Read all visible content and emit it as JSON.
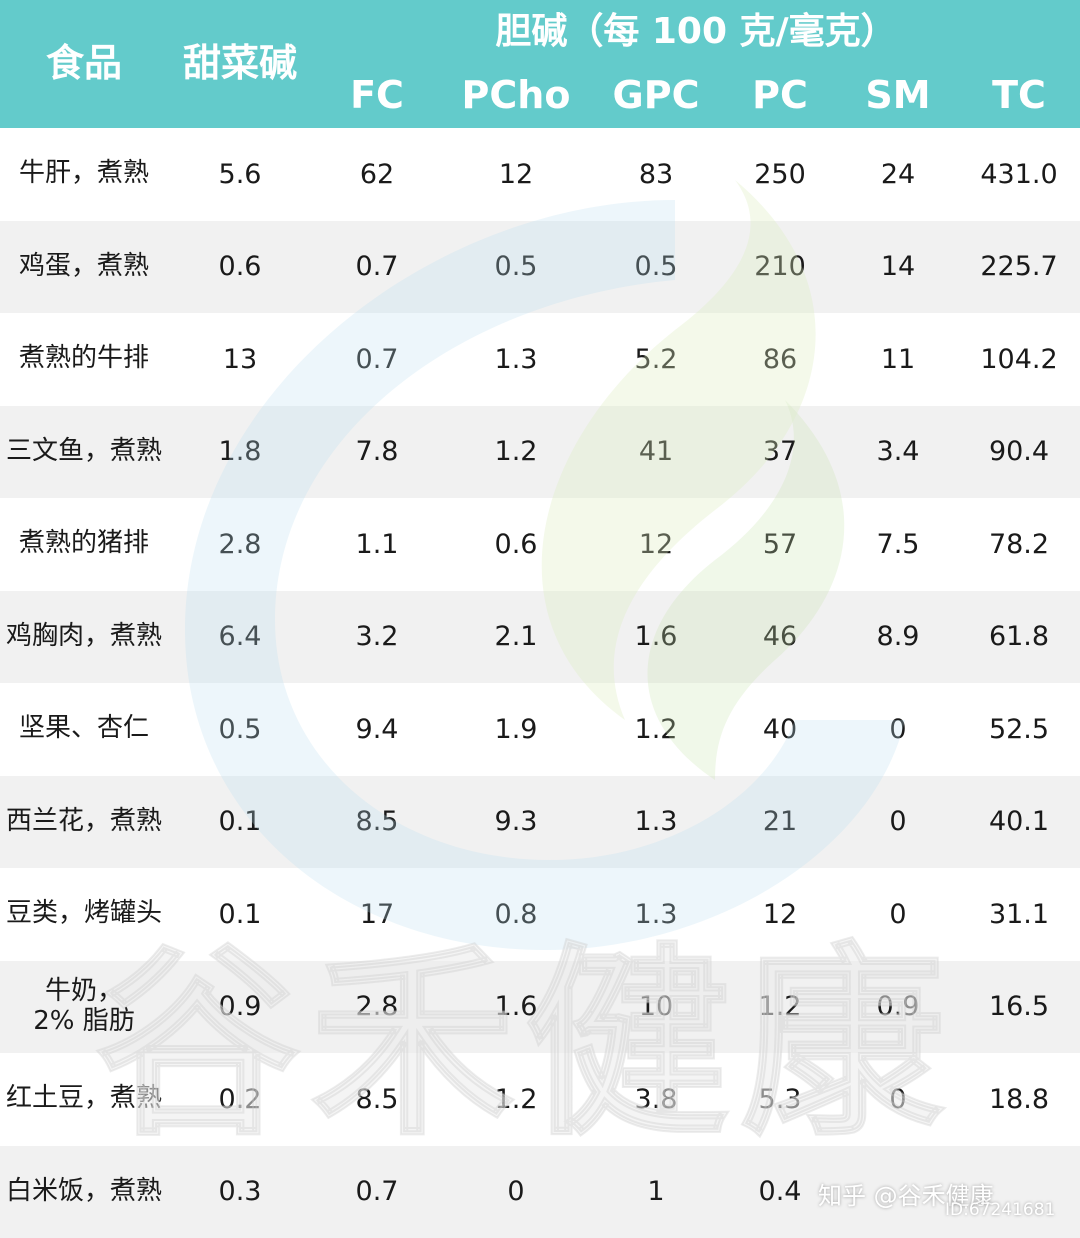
{
  "header": {
    "food": "食品",
    "betaine": "甜菜碱",
    "choline_group": "胆碱（每 100 克/毫克）",
    "sub": [
      "FC",
      "PCho",
      "GPC",
      "PC",
      "SM",
      "TC"
    ]
  },
  "rows": [
    {
      "food": "牛肝，煮熟",
      "betaine": "5.6",
      "fc": "62",
      "pcho": "12",
      "gpc": "83",
      "pc": "250",
      "sm": "24",
      "tc": "431.0"
    },
    {
      "food": "鸡蛋，煮熟",
      "betaine": "0.6",
      "fc": "0.7",
      "pcho": "0.5",
      "gpc": "0.5",
      "pc": "210",
      "sm": "14",
      "tc": "225.7"
    },
    {
      "food": "煮熟的牛排",
      "betaine": "13",
      "fc": "0.7",
      "pcho": "1.3",
      "gpc": "5.2",
      "pc": "86",
      "sm": "11",
      "tc": "104.2"
    },
    {
      "food": "三文鱼，煮熟",
      "betaine": "1.8",
      "fc": "7.8",
      "pcho": "1.2",
      "gpc": "41",
      "pc": "37",
      "sm": "3.4",
      "tc": "90.4"
    },
    {
      "food": "煮熟的猪排",
      "betaine": "2.8",
      "fc": "1.1",
      "pcho": "0.6",
      "gpc": "12",
      "pc": "57",
      "sm": "7.5",
      "tc": "78.2"
    },
    {
      "food": "鸡胸肉，煮熟",
      "betaine": "6.4",
      "fc": "3.2",
      "pcho": "2.1",
      "gpc": "1.6",
      "pc": "46",
      "sm": "8.9",
      "tc": "61.8"
    },
    {
      "food": "坚果、杏仁",
      "betaine": "0.5",
      "fc": "9.4",
      "pcho": "1.9",
      "gpc": "1.2",
      "pc": "40",
      "sm": "0",
      "tc": "52.5"
    },
    {
      "food": "西兰花，煮熟",
      "betaine": "0.1",
      "fc": "8.5",
      "pcho": "9.3",
      "gpc": "1.3",
      "pc": "21",
      "sm": "0",
      "tc": "40.1"
    },
    {
      "food": "豆类，烤罐头",
      "betaine": "0.1",
      "fc": "17",
      "pcho": "0.8",
      "gpc": "1.3",
      "pc": "12",
      "sm": "0",
      "tc": "31.1"
    },
    {
      "food": "牛奶，\n2% 脂肪",
      "betaine": "0.9",
      "fc": "2.8",
      "pcho": "1.6",
      "gpc": "10",
      "pc": "1.2",
      "sm": "0.9",
      "tc": "16.5"
    },
    {
      "food": "红土豆，煮熟",
      "betaine": "0.2",
      "fc": "8.5",
      "pcho": "1.2",
      "gpc": "3.8",
      "pc": "5.3",
      "sm": "0",
      "tc": "18.8"
    },
    {
      "food": "白米饭，煮熟",
      "betaine": "0.3",
      "fc": "0.7",
      "pcho": "0",
      "gpc": "1",
      "pc": "0.4",
      "sm": "",
      "tc": ""
    }
  ],
  "watermark": {
    "text": "谷禾健康"
  },
  "credit": {
    "site": "知乎 @谷禾健康",
    "id": "ID:67241681"
  },
  "colors": {
    "header_bg": "#63cbcb",
    "row_alt": "#f1f1f1",
    "text": "#1a1a1a"
  }
}
